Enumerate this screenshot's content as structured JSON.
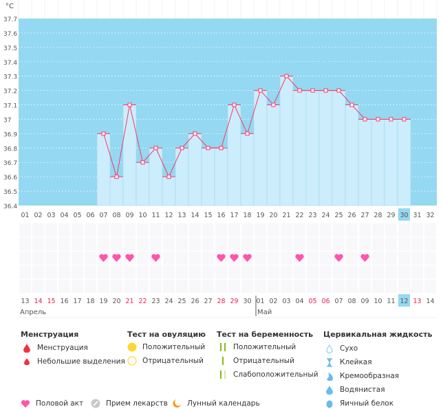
{
  "chart_data": {
    "type": "bar",
    "unit_label": "°C",
    "ylim": [
      36.4,
      37.7
    ],
    "yticks": [
      "37.7",
      "37.6",
      "37.5",
      "37.4",
      "37.3",
      "37.2",
      "37.1",
      "37",
      "36.9",
      "36.8",
      "36.7",
      "36.6",
      "36.5",
      "36.4"
    ],
    "cycle_days": [
      "01",
      "02",
      "03",
      "04",
      "05",
      "06",
      "07",
      "08",
      "09",
      "10",
      "11",
      "12",
      "13",
      "14",
      "15",
      "16",
      "17",
      "18",
      "19",
      "20",
      "21",
      "22",
      "23",
      "24",
      "25",
      "26",
      "27",
      "28",
      "29",
      "30",
      "31",
      "32"
    ],
    "current_day": "30",
    "temperatures": [
      null,
      null,
      null,
      null,
      null,
      null,
      36.9,
      36.6,
      37.1,
      36.7,
      36.8,
      36.6,
      36.8,
      36.9,
      36.8,
      36.8,
      37.1,
      36.9,
      37.2,
      37.1,
      37.3,
      37.2,
      37.2,
      37.2,
      37.2,
      37.1,
      37.0,
      37.0,
      37.0,
      37.0,
      null,
      null
    ],
    "intercourse_days": [
      "07",
      "08",
      "09",
      "11",
      "16",
      "17",
      "18",
      "22",
      "25",
      "27"
    ],
    "dates": [
      "13",
      "14",
      "15",
      "16",
      "17",
      "18",
      "19",
      "20",
      "21",
      "22",
      "23",
      "24",
      "25",
      "26",
      "27",
      "28",
      "29",
      "30",
      "01",
      "02",
      "03",
      "04",
      "05",
      "06",
      "07",
      "08",
      "09",
      "10",
      "11",
      "12",
      "13",
      "14"
    ],
    "weekend_dates_index": [
      1,
      2,
      8,
      9,
      15,
      16,
      22,
      23,
      30
    ],
    "today_index": 29,
    "months": [
      {
        "label": "Апрель",
        "start_index": 0
      },
      {
        "label": "Май",
        "start_index": 18
      }
    ],
    "grid": true
  },
  "colors": {
    "plot_bg": "#94d8f2",
    "bar": "#ccedfb",
    "line": "#ff3366",
    "heart": "#ff55aa",
    "weekend": "#e8204e",
    "today": "#94d8f2"
  },
  "legend": {
    "menstruation": {
      "title": "Менструация",
      "items": [
        "Менструация",
        "Небольшие выделения"
      ]
    },
    "ovulation": {
      "title": "Тест на овуляцию",
      "items": [
        "Положительный",
        "Отрицательный"
      ]
    },
    "pregnancy": {
      "title": "Тест на беременность",
      "items": [
        "Положительный",
        "Отрицательный",
        "Слабоположительный"
      ]
    },
    "cervical": {
      "title": "Цервикальная жидкость",
      "items": [
        "Сухо",
        "Клейкая",
        "Кремообразная",
        "Водянистая",
        "Яичный белок"
      ]
    },
    "other": [
      "Половой акт",
      "Прием лекарств",
      "Лунный календарь"
    ]
  }
}
